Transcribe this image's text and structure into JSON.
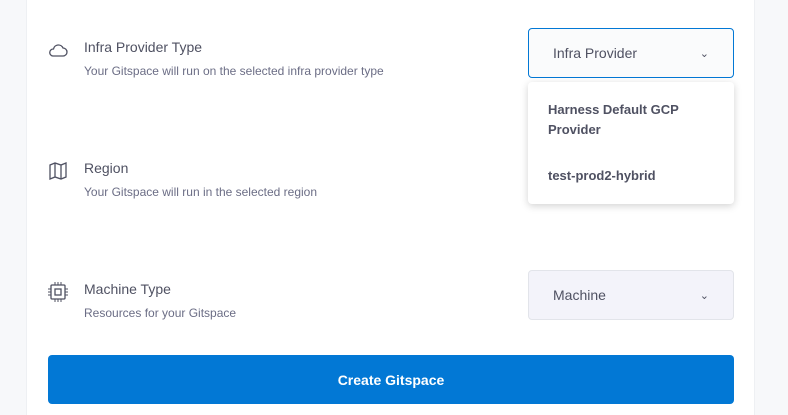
{
  "sections": [
    {
      "title": "Infra Provider Type",
      "subtitle": "Your Gitspace will run on the selected infra provider type",
      "icon": "cloud-icon",
      "select": "Infra Provider"
    },
    {
      "title": "Region",
      "subtitle": "Your Gitspace will run in the selected region",
      "icon": "map-icon"
    },
    {
      "title": "Machine Type",
      "subtitle": "Resources for your Gitspace",
      "icon": "cpu-icon",
      "select": "Machine"
    }
  ],
  "dropdown": {
    "options": [
      "Harness Default GCP Provider",
      "test-prod2-hybrid"
    ]
  },
  "create_button": "Create Gitspace",
  "colors": {
    "accent": "#0278d5"
  }
}
